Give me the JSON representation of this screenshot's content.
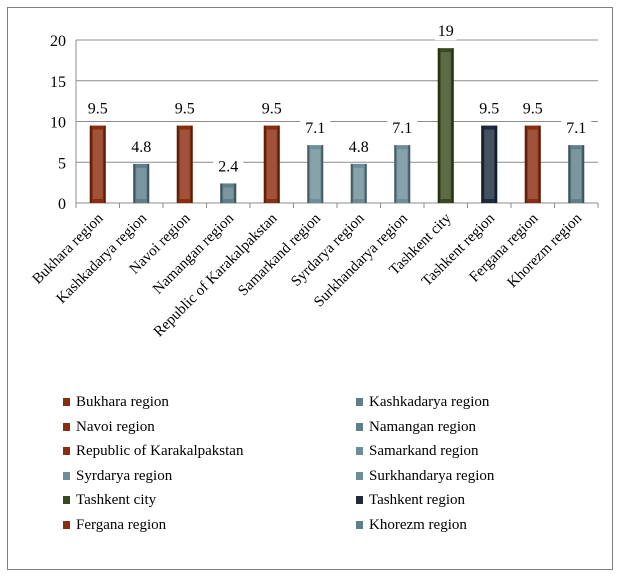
{
  "chart_data": {
    "type": "bar",
    "categories": [
      "Bukhara region",
      "Kashkadarya region",
      "Navoi region",
      "Namangan region",
      "Republic of Karakalpakstan",
      "Samarkand region",
      "Syrdarya region",
      "Surkhandarya region",
      "Tashkent city",
      "Tashkent region",
      "Fergana region",
      "Khorezm region"
    ],
    "values": [
      9.5,
      4.8,
      9.5,
      2.4,
      9.5,
      7.1,
      4.8,
      7.1,
      19,
      9.5,
      9.5,
      7.1
    ],
    "value_labels": [
      "9.5",
      "4.8",
      "9.5",
      "2.4",
      "9.5",
      "7.1",
      "4.8",
      "7.1",
      "19",
      "9.5",
      "9.5",
      "7.1"
    ],
    "colors": [
      "#8B2E0F",
      "#5E7F8A",
      "#8B2E0F",
      "#5E7F8A",
      "#8B2E0F",
      "#6D8E99",
      "#6D8E99",
      "#6D8E99",
      "#3B4A1E",
      "#1E2B3D",
      "#8B2E0F",
      "#5E7F8A"
    ],
    "ylim": [
      0,
      20
    ],
    "yticks": [
      "0",
      "5",
      "10",
      "15",
      "20"
    ],
    "grid": true,
    "legend_position": "bottom",
    "title": "",
    "xlabel": "",
    "ylabel": ""
  }
}
